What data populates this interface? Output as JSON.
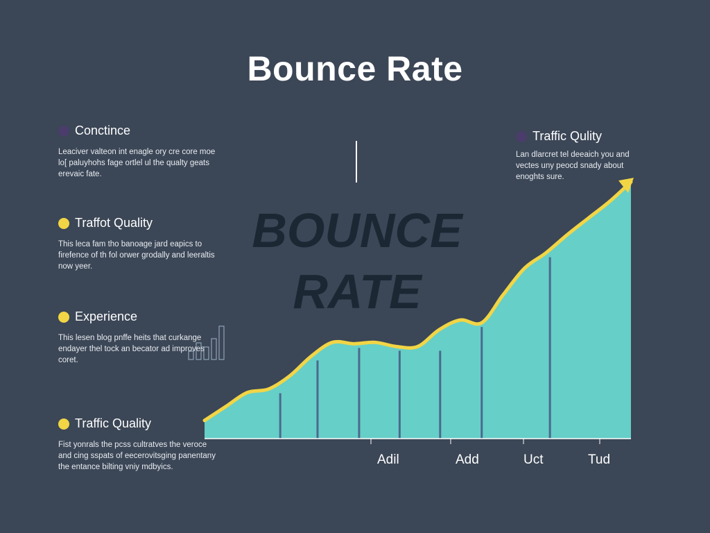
{
  "title": "Bounce Rate",
  "watermark": {
    "line1": "BOUNCE",
    "line2": "RATE"
  },
  "legend_left": [
    {
      "label": "Conctince",
      "dot_color": "#4a3d6b",
      "text": "Leaciver valteon int enagle ory cre core moe lo[ paluyhohs fage ortlel ul the qualty geats erevaic fate."
    },
    {
      "label": "Traffot Quality",
      "dot_color": "#f2d545",
      "text": "This leca fam tho banoage jard eapics to firefence of th fol orwer grodally and leeraltis now yeer."
    },
    {
      "label": "Experience",
      "dot_color": "#f2d545",
      "text": "This lesen blog pnffe heits that curkange endayer thel tock an becator ad improves coret."
    },
    {
      "label": "Traffic Quality",
      "dot_color": "#f2d545",
      "text": "Fist yonrals the pcss cultratves the veroce and cing sspats of eecerovitsging panentany the entance bilting vniy mdbyics."
    }
  ],
  "legend_right": {
    "label": "Traffic Qulity",
    "dot_color": "#4a3d6b",
    "text": "Lan dlarcret tel deeaich you and vectes uny peocd snady about enoghts sure."
  },
  "colors": {
    "background": "#3b4656",
    "area_fill": "#66cfc7",
    "line": "#f2d545",
    "bar": "#4a6a8e",
    "axis": "#ffffff"
  },
  "chart_data": {
    "type": "area",
    "title": "Bounce Rate",
    "xlabel": "",
    "ylabel": "",
    "x_tick_labels": [
      "Adil",
      "Add",
      "Uct",
      "Tud"
    ],
    "x": [
      0,
      1,
      2,
      3,
      4,
      5,
      6,
      7,
      8,
      9,
      10,
      11,
      12,
      13,
      14,
      15,
      16,
      17,
      18,
      19,
      20
    ],
    "series": [
      {
        "values": [
          1.3,
          2.3,
          3.3,
          3.55,
          4.5,
          5.9,
          6.9,
          6.8,
          6.9,
          6.6,
          6.6,
          7.8,
          8.5,
          8.3,
          10.3,
          12.2,
          13.3,
          14.6,
          15.8,
          17.0,
          18.4
        ]
      }
    ],
    "vertical_bars": [
      {
        "x": 3.55,
        "value": 3.55
      },
      {
        "x": 5.3,
        "value": 5.9
      },
      {
        "x": 7.25,
        "value": 6.8
      },
      {
        "x": 9.15,
        "value": 6.6
      },
      {
        "x": 11.05,
        "value": 6.6
      },
      {
        "x": 13.0,
        "value": 8.3
      },
      {
        "x": 16.2,
        "value": 13.3
      }
    ],
    "ylim": [
      0,
      20
    ],
    "grid": false,
    "inset_bars": [
      2,
      4,
      3,
      5,
      8
    ]
  }
}
